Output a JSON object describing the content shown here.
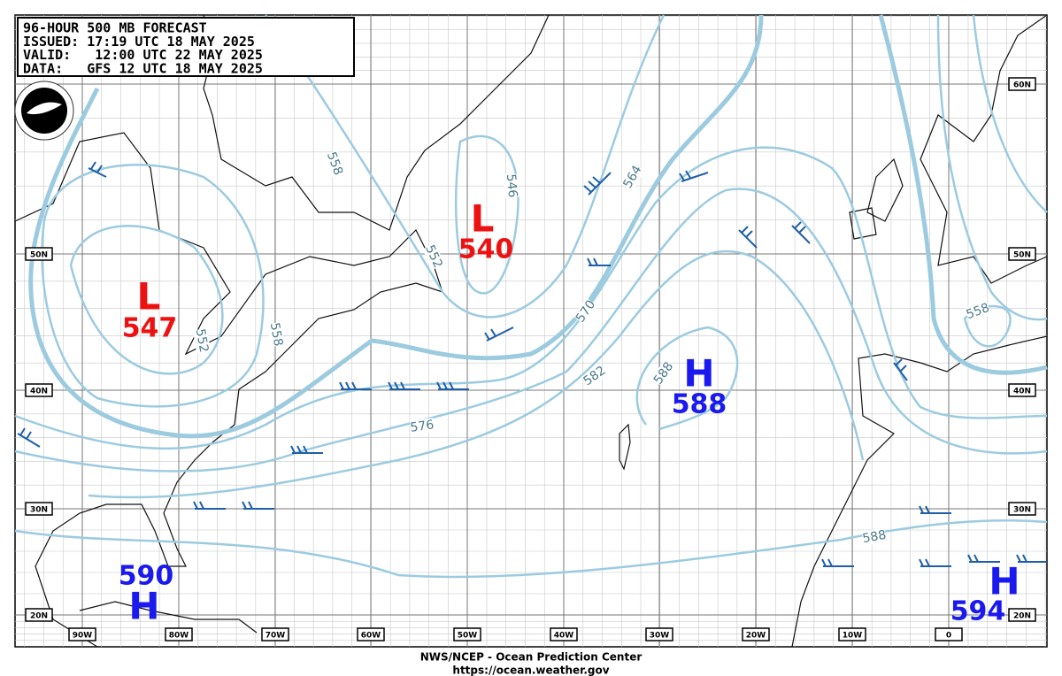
{
  "header": {
    "lines": [
      "96-HOUR 500 MB FORECAST",
      "ISSUED: 17:19 UTC 18 MAY 2025",
      "VALID:   12:00 UTC 22 MAY 2025",
      "DATA:   GFS 12 UTC 18 MAY 2025"
    ]
  },
  "latitudes": [
    "60N",
    "50N",
    "40N",
    "30N",
    "20N"
  ],
  "longitudes": [
    "90W",
    "80W",
    "70W",
    "60W",
    "50W",
    "40W",
    "30W",
    "20W",
    "10W",
    "0"
  ],
  "contour_labels": [
    "558",
    "552",
    "546",
    "564",
    "570",
    "582",
    "588",
    "576",
    "588",
    "558",
    "552",
    "558"
  ],
  "centers": [
    {
      "type": "L",
      "value": "540"
    },
    {
      "type": "L",
      "value": "547"
    },
    {
      "type": "H",
      "value": "588"
    },
    {
      "type": "H",
      "value": "590"
    },
    {
      "type": "H",
      "value": "594"
    }
  ],
  "footer": {
    "line1": "NWS/NCEP - Ocean Prediction Center",
    "line2": "https://ocean.weather.gov"
  }
}
